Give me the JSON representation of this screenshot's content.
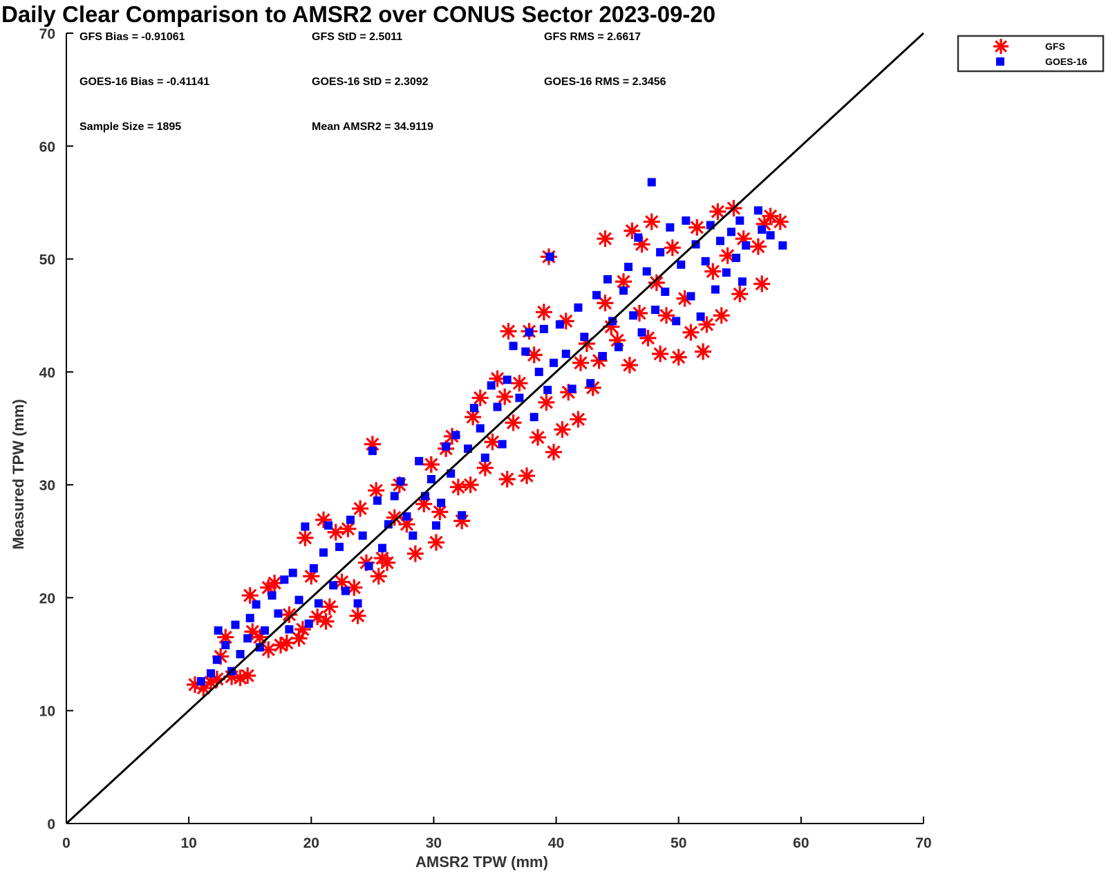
{
  "chart_data": {
    "type": "scatter",
    "title": "Daily Clear Comparison to AMSR2 over CONUS Sector 2023-09-20",
    "xlabel": "AMSR2 TPW (mm)",
    "ylabel": "Measured TPW (mm)",
    "xlim": [
      0,
      70
    ],
    "ylim": [
      0,
      70
    ],
    "xticks": [
      "0",
      "10",
      "20",
      "30",
      "40",
      "50",
      "60",
      "70"
    ],
    "yticks": [
      "0",
      "10",
      "20",
      "30",
      "40",
      "50",
      "60",
      "70"
    ],
    "grid": false,
    "legend_position": "top-right",
    "reference_line": {
      "from": [
        0,
        0
      ],
      "to": [
        70,
        70
      ],
      "color": "#000000"
    },
    "stats": {
      "gfs_bias": "GFS Bias = -0.91061",
      "gfs_std": "GFS StD = 2.5011",
      "gfs_rms": "GFS RMS = 2.6617",
      "goes_bias": "GOES-16 Bias = -0.41141",
      "goes_std": "GOES-16 StD = 2.3092",
      "goes_rms": "GOES-16 RMS = 2.3456",
      "sample_size": "Sample Size = 1895",
      "mean_amsr2": "Mean AMSR2 = 34.9119"
    },
    "series": [
      {
        "name": "GFS",
        "marker": "asterisk",
        "color": "#ff0000",
        "points": [
          [
            10.5,
            12.3
          ],
          [
            11.2,
            12.0
          ],
          [
            11.8,
            12.5
          ],
          [
            12.3,
            12.8
          ],
          [
            12.6,
            14.8
          ],
          [
            13.0,
            16.5
          ],
          [
            13.5,
            13.0
          ],
          [
            14.2,
            12.9
          ],
          [
            14.8,
            13.1
          ],
          [
            15.0,
            20.2
          ],
          [
            15.2,
            17.0
          ],
          [
            15.8,
            16.5
          ],
          [
            16.5,
            15.4
          ],
          [
            16.5,
            20.9
          ],
          [
            17.0,
            21.3
          ],
          [
            17.5,
            15.8
          ],
          [
            18.0,
            16.0
          ],
          [
            18.2,
            18.5
          ],
          [
            19.0,
            16.4
          ],
          [
            19.3,
            17.2
          ],
          [
            19.5,
            25.3
          ],
          [
            20.0,
            21.9
          ],
          [
            20.5,
            18.3
          ],
          [
            21.0,
            26.9
          ],
          [
            21.2,
            17.9
          ],
          [
            21.5,
            19.2
          ],
          [
            22.0,
            25.8
          ],
          [
            22.5,
            21.4
          ],
          [
            23.0,
            26.1
          ],
          [
            23.5,
            20.9
          ],
          [
            23.8,
            18.4
          ],
          [
            24.0,
            27.9
          ],
          [
            24.5,
            23.1
          ],
          [
            25.0,
            33.6
          ],
          [
            25.3,
            29.5
          ],
          [
            25.5,
            21.9
          ],
          [
            25.8,
            23.5
          ],
          [
            26.2,
            23.1
          ],
          [
            26.8,
            27.1
          ],
          [
            27.2,
            30.0
          ],
          [
            27.8,
            26.5
          ],
          [
            28.5,
            23.9
          ],
          [
            29.2,
            28.3
          ],
          [
            29.8,
            31.8
          ],
          [
            30.2,
            24.9
          ],
          [
            30.5,
            27.6
          ],
          [
            31.0,
            33.2
          ],
          [
            31.5,
            34.3
          ],
          [
            32.0,
            29.8
          ],
          [
            32.3,
            26.8
          ],
          [
            33.0,
            30.0
          ],
          [
            33.2,
            36.0
          ],
          [
            33.8,
            37.7
          ],
          [
            34.2,
            31.5
          ],
          [
            34.8,
            33.8
          ],
          [
            35.2,
            39.4
          ],
          [
            35.8,
            37.8
          ],
          [
            36.0,
            30.5
          ],
          [
            36.1,
            43.6
          ],
          [
            36.5,
            35.5
          ],
          [
            37.0,
            39.0
          ],
          [
            37.6,
            30.8
          ],
          [
            37.8,
            43.6
          ],
          [
            38.2,
            41.5
          ],
          [
            38.5,
            34.2
          ],
          [
            39.0,
            45.3
          ],
          [
            39.2,
            37.3
          ],
          [
            39.4,
            50.2
          ],
          [
            39.8,
            32.9
          ],
          [
            40.5,
            34.9
          ],
          [
            40.8,
            44.5
          ],
          [
            41.0,
            38.2
          ],
          [
            41.8,
            35.8
          ],
          [
            42.0,
            40.8
          ],
          [
            42.5,
            42.5
          ],
          [
            43.0,
            38.6
          ],
          [
            43.5,
            41.0
          ],
          [
            44.0,
            46.1
          ],
          [
            44.0,
            51.8
          ],
          [
            44.5,
            44.0
          ],
          [
            45.0,
            42.8
          ],
          [
            45.5,
            48.0
          ],
          [
            46.0,
            40.6
          ],
          [
            46.2,
            52.5
          ],
          [
            46.8,
            45.2
          ],
          [
            47.0,
            51.3
          ],
          [
            47.5,
            43.0
          ],
          [
            47.8,
            53.3
          ],
          [
            48.2,
            47.9
          ],
          [
            48.5,
            41.6
          ],
          [
            49.0,
            45.0
          ],
          [
            49.5,
            51.0
          ],
          [
            50.0,
            41.3
          ],
          [
            50.5,
            46.5
          ],
          [
            51.0,
            43.5
          ],
          [
            51.5,
            52.8
          ],
          [
            52.0,
            41.8
          ],
          [
            52.3,
            44.2
          ],
          [
            52.8,
            48.9
          ],
          [
            53.2,
            54.2
          ],
          [
            53.5,
            45.0
          ],
          [
            54.0,
            50.3
          ],
          [
            54.5,
            54.5
          ],
          [
            55.0,
            46.9
          ],
          [
            55.3,
            51.8
          ],
          [
            56.5,
            51.1
          ],
          [
            56.8,
            47.8
          ],
          [
            57.0,
            53.1
          ],
          [
            57.5,
            53.8
          ],
          [
            58.3,
            53.3
          ]
        ]
      },
      {
        "name": "GOES-16",
        "marker": "square",
        "color": "#0000ff",
        "points": [
          [
            11.0,
            12.6
          ],
          [
            11.8,
            13.3
          ],
          [
            12.3,
            14.5
          ],
          [
            12.4,
            17.1
          ],
          [
            13.0,
            15.8
          ],
          [
            13.5,
            13.5
          ],
          [
            13.8,
            17.6
          ],
          [
            14.2,
            15.0
          ],
          [
            14.8,
            16.4
          ],
          [
            15.0,
            18.2
          ],
          [
            15.5,
            19.4
          ],
          [
            15.8,
            15.6
          ],
          [
            16.2,
            17.1
          ],
          [
            16.8,
            20.2
          ],
          [
            17.3,
            18.6
          ],
          [
            17.8,
            21.6
          ],
          [
            18.2,
            17.2
          ],
          [
            18.5,
            22.2
          ],
          [
            19.0,
            19.8
          ],
          [
            19.5,
            26.3
          ],
          [
            19.8,
            17.7
          ],
          [
            20.2,
            22.6
          ],
          [
            20.6,
            19.5
          ],
          [
            21.0,
            24.0
          ],
          [
            21.4,
            26.4
          ],
          [
            21.8,
            21.1
          ],
          [
            22.3,
            24.5
          ],
          [
            22.8,
            20.6
          ],
          [
            23.2,
            26.9
          ],
          [
            23.8,
            19.5
          ],
          [
            24.2,
            25.5
          ],
          [
            24.7,
            22.8
          ],
          [
            25.0,
            33.0
          ],
          [
            25.4,
            28.6
          ],
          [
            25.8,
            24.4
          ],
          [
            26.3,
            26.5
          ],
          [
            26.8,
            29.0
          ],
          [
            27.3,
            30.3
          ],
          [
            27.8,
            27.2
          ],
          [
            28.3,
            25.5
          ],
          [
            28.8,
            32.1
          ],
          [
            29.3,
            29.0
          ],
          [
            29.8,
            30.5
          ],
          [
            30.2,
            26.4
          ],
          [
            30.6,
            28.4
          ],
          [
            31.0,
            33.4
          ],
          [
            31.4,
            31.0
          ],
          [
            31.8,
            34.4
          ],
          [
            32.3,
            27.3
          ],
          [
            32.8,
            33.2
          ],
          [
            33.3,
            36.8
          ],
          [
            33.8,
            35.0
          ],
          [
            34.2,
            32.4
          ],
          [
            34.7,
            38.8
          ],
          [
            35.2,
            36.9
          ],
          [
            35.6,
            33.6
          ],
          [
            36.0,
            39.3
          ],
          [
            36.5,
            42.3
          ],
          [
            37.0,
            37.7
          ],
          [
            37.5,
            41.8
          ],
          [
            37.8,
            43.5
          ],
          [
            38.2,
            36.0
          ],
          [
            38.6,
            40.0
          ],
          [
            39.0,
            43.8
          ],
          [
            39.3,
            38.4
          ],
          [
            39.5,
            50.2
          ],
          [
            39.8,
            40.8
          ],
          [
            40.3,
            44.2
          ],
          [
            40.8,
            41.6
          ],
          [
            41.3,
            38.5
          ],
          [
            41.8,
            45.7
          ],
          [
            42.3,
            43.1
          ],
          [
            42.8,
            39.0
          ],
          [
            43.3,
            46.8
          ],
          [
            43.8,
            41.4
          ],
          [
            44.2,
            48.2
          ],
          [
            44.6,
            44.5
          ],
          [
            45.1,
            42.2
          ],
          [
            45.5,
            47.2
          ],
          [
            45.9,
            49.3
          ],
          [
            46.3,
            45.0
          ],
          [
            46.7,
            51.9
          ],
          [
            47.0,
            43.5
          ],
          [
            47.4,
            48.9
          ],
          [
            47.8,
            56.8
          ],
          [
            48.1,
            45.5
          ],
          [
            48.5,
            50.6
          ],
          [
            48.9,
            47.1
          ],
          [
            49.3,
            52.8
          ],
          [
            49.8,
            44.5
          ],
          [
            50.2,
            49.5
          ],
          [
            50.6,
            53.4
          ],
          [
            51.0,
            46.7
          ],
          [
            51.4,
            51.3
          ],
          [
            51.8,
            44.9
          ],
          [
            52.2,
            49.8
          ],
          [
            52.6,
            53.0
          ],
          [
            53.0,
            47.3
          ],
          [
            53.4,
            51.6
          ],
          [
            53.9,
            48.8
          ],
          [
            54.3,
            52.4
          ],
          [
            54.7,
            50.1
          ],
          [
            55.0,
            53.4
          ],
          [
            55.2,
            48.0
          ],
          [
            55.5,
            51.2
          ],
          [
            56.5,
            54.3
          ],
          [
            56.8,
            52.6
          ],
          [
            57.5,
            52.1
          ],
          [
            58.5,
            51.2
          ]
        ]
      }
    ]
  }
}
